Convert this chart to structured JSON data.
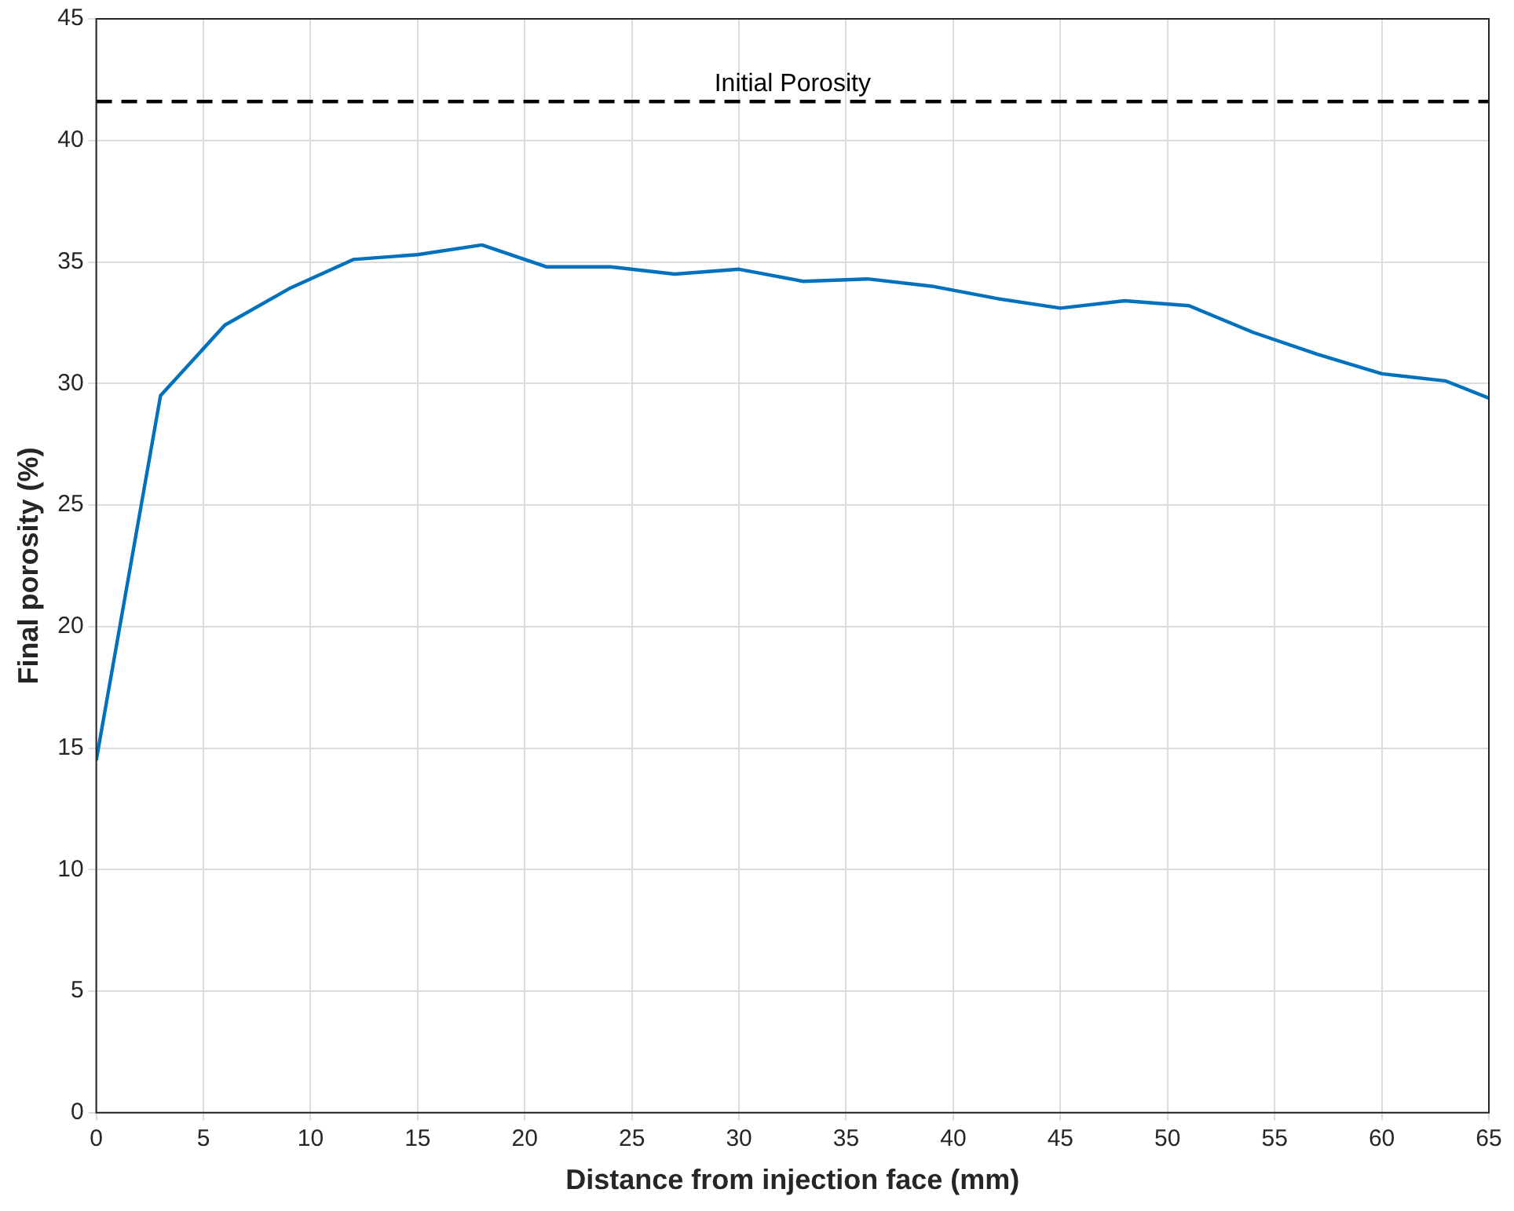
{
  "chart_data": {
    "type": "line",
    "xlabel": "Distance from injection face (mm)",
    "ylabel": "Final porosity (%)",
    "x": [
      0,
      3,
      6,
      9,
      12,
      15,
      18,
      21,
      24,
      27,
      30,
      33,
      36,
      39,
      42,
      45,
      48,
      51,
      54,
      57,
      60,
      63,
      65
    ],
    "series": [
      {
        "color": "#0072bd",
        "values": [
          14.5,
          29.5,
          32.4,
          33.9,
          35.1,
          35.3,
          35.7,
          34.8,
          34.8,
          34.5,
          34.7,
          34.2,
          34.3,
          34.0,
          33.5,
          33.1,
          33.4,
          33.2,
          32.1,
          31.2,
          30.4,
          30.1,
          29.4
        ]
      }
    ],
    "xlim": [
      0,
      65
    ],
    "xticks": [
      0,
      5,
      10,
      15,
      20,
      25,
      30,
      35,
      40,
      45,
      50,
      55,
      60,
      65
    ],
    "ylim": [
      0,
      45
    ],
    "yticks": [
      0,
      5,
      10,
      15,
      20,
      25,
      30,
      35,
      40,
      45
    ],
    "ref_lines": [
      {
        "axis": "y",
        "value": 41.6,
        "label": "Initial Porosity",
        "color": "#000000",
        "line_style": "dashed"
      }
    ],
    "grid": true,
    "legend": false,
    "marker": "none",
    "line_style": "solid"
  }
}
